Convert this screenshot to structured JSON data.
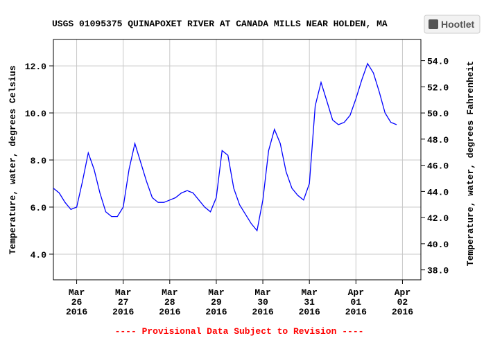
{
  "chart_data": {
    "type": "line",
    "title": "USGS 01095375 QUINAPOXET RIVER AT CANADA MILLS NEAR HOLDEN, MA",
    "ylabel": "Temperature, water, degrees Celsius",
    "y2label": "Temperature, water, degrees Fahrenheit",
    "footnote": "---- Provisional Data Subject to Revision ----",
    "badge": "Hootlet",
    "x": [
      "2016-03-25T12:00",
      "2016-03-25T15:00",
      "2016-03-25T18:00",
      "2016-03-25T21:00",
      "2016-03-26T00:00",
      "2016-03-26T03:00",
      "2016-03-26T06:00",
      "2016-03-26T09:00",
      "2016-03-26T12:00",
      "2016-03-26T15:00",
      "2016-03-26T18:00",
      "2016-03-26T21:00",
      "2016-03-27T00:00",
      "2016-03-27T03:00",
      "2016-03-27T06:00",
      "2016-03-27T09:00",
      "2016-03-27T12:00",
      "2016-03-27T15:00",
      "2016-03-27T18:00",
      "2016-03-27T21:00",
      "2016-03-28T00:00",
      "2016-03-28T03:00",
      "2016-03-28T06:00",
      "2016-03-28T09:00",
      "2016-03-28T12:00",
      "2016-03-28T15:00",
      "2016-03-28T18:00",
      "2016-03-28T21:00",
      "2016-03-29T00:00",
      "2016-03-29T03:00",
      "2016-03-29T06:00",
      "2016-03-29T09:00",
      "2016-03-29T12:00",
      "2016-03-29T15:00",
      "2016-03-29T18:00",
      "2016-03-29T21:00",
      "2016-03-30T00:00",
      "2016-03-30T03:00",
      "2016-03-30T06:00",
      "2016-03-30T09:00",
      "2016-03-30T12:00",
      "2016-03-30T15:00",
      "2016-03-30T18:00",
      "2016-03-30T21:00",
      "2016-03-31T00:00",
      "2016-03-31T03:00",
      "2016-03-31T06:00",
      "2016-03-31T09:00",
      "2016-03-31T12:00",
      "2016-03-31T15:00",
      "2016-03-31T18:00",
      "2016-03-31T21:00",
      "2016-04-01T00:00",
      "2016-04-01T03:00",
      "2016-04-01T06:00",
      "2016-04-01T09:00",
      "2016-04-01T12:00",
      "2016-04-01T15:00",
      "2016-04-01T18:00",
      "2016-04-01T21:00"
    ],
    "series": [
      {
        "name": "Temperature",
        "color": "#0000ff",
        "values": [
          6.8,
          6.6,
          6.2,
          5.9,
          6.0,
          7.1,
          8.3,
          7.6,
          6.6,
          5.8,
          5.6,
          5.6,
          6.0,
          7.6,
          8.7,
          7.9,
          7.1,
          6.4,
          6.2,
          6.2,
          6.3,
          6.4,
          6.6,
          6.7,
          6.6,
          6.3,
          6.0,
          5.8,
          6.4,
          8.4,
          8.2,
          6.8,
          6.1,
          5.7,
          5.3,
          5.0,
          6.3,
          8.4,
          9.3,
          8.7,
          7.5,
          6.8,
          6.5,
          6.3,
          7.0,
          10.3,
          11.3,
          10.5,
          9.7,
          9.5,
          9.6,
          9.9,
          10.6,
          11.4,
          12.1,
          11.7,
          10.9,
          10.0,
          9.6,
          9.5
        ]
      }
    ],
    "xlim": [
      "2016-03-25T12:00",
      "2016-04-02T09:30"
    ],
    "xticks": [
      {
        "value": "2016-03-26",
        "label": "Mar 26 2016"
      },
      {
        "value": "2016-03-27",
        "label": "Mar 27 2016"
      },
      {
        "value": "2016-03-28",
        "label": "Mar 28 2016"
      },
      {
        "value": "2016-03-29",
        "label": "Mar 29 2016"
      },
      {
        "value": "2016-03-30",
        "label": "Mar 30 2016"
      },
      {
        "value": "2016-03-31",
        "label": "Mar 31 2016"
      },
      {
        "value": "2016-04-01",
        "label": "Apr 01 2016"
      },
      {
        "value": "2016-04-02",
        "label": "Apr 02 2016"
      }
    ],
    "ylim": [
      2.91,
      13.12
    ],
    "yticks": [
      {
        "value": 4,
        "label": "4.0"
      },
      {
        "value": 6,
        "label": "6.0"
      },
      {
        "value": 8,
        "label": "8.0"
      },
      {
        "value": 10,
        "label": "10.0"
      },
      {
        "value": 12,
        "label": "12.0"
      }
    ],
    "y2lim": [
      37.24,
      55.62
    ],
    "y2ticks": [
      {
        "value": 38,
        "label": "38.0"
      },
      {
        "value": 40,
        "label": "40.0"
      },
      {
        "value": 42,
        "label": "42.0"
      },
      {
        "value": 44,
        "label": "44.0"
      },
      {
        "value": 46,
        "label": "46.0"
      },
      {
        "value": 48,
        "label": "48.0"
      },
      {
        "value": 50,
        "label": "50.0"
      },
      {
        "value": 52,
        "label": "52.0"
      },
      {
        "value": 54,
        "label": "54.0"
      }
    ],
    "grid": true
  }
}
